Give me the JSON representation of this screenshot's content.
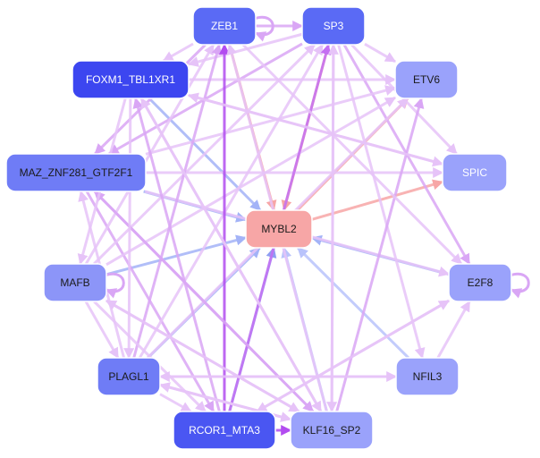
{
  "network": {
    "nodes": [
      {
        "id": "ZEB1",
        "label": "ZEB1",
        "fill": "#5a6af5",
        "text": "#ffffff"
      },
      {
        "id": "SP3",
        "label": "SP3",
        "fill": "#5a6af5",
        "text": "#ffffff"
      },
      {
        "id": "FOXM1_TBL1XR1",
        "label": "FOXM1_TBL1XR1",
        "fill": "#3c46f0",
        "text": "#ffffff"
      },
      {
        "id": "ETV6",
        "label": "ETV6",
        "fill": "#9aa2fb",
        "text": "#1a1a1a"
      },
      {
        "id": "MAZ_ZNF281_GTF2F1",
        "label": "MAZ_ZNF281_GTF2F1",
        "fill": "#6f7cf6",
        "text": "#1a1a1a"
      },
      {
        "id": "SPIC",
        "label": "SPIC",
        "fill": "#9aa2fb",
        "text": "#ffffff"
      },
      {
        "id": "MYBL2",
        "label": "MYBL2",
        "fill": "#f7a6a6",
        "text": "#1a1a1a"
      },
      {
        "id": "MAFB",
        "label": "MAFB",
        "fill": "#8c95f8",
        "text": "#1a1a1a"
      },
      {
        "id": "E2F8",
        "label": "E2F8",
        "fill": "#9aa2fb",
        "text": "#1a1a1a"
      },
      {
        "id": "PLAGL1",
        "label": "PLAGL1",
        "fill": "#6f7cf6",
        "text": "#1a1a1a"
      },
      {
        "id": "NFIL3",
        "label": "NFIL3",
        "fill": "#9aa2fb",
        "text": "#1a1a1a"
      },
      {
        "id": "RCOR1_MTA3",
        "label": "RCOR1_MTA3",
        "fill": "#4a56f2",
        "text": "#ffffff"
      },
      {
        "id": "KLF16_SP2",
        "label": "KLF16_SP2",
        "fill": "#9aa2fb",
        "text": "#1a1a1a"
      }
    ],
    "edges": [
      [
        "SP3",
        "MYBL2",
        "#f7a6a6"
      ],
      [
        "ZEB1",
        "MYBL2",
        "#f7a6a6"
      ],
      [
        "MYBL2",
        "ETV6",
        "#f7a6a6"
      ],
      [
        "MYBL2",
        "SPIC",
        "#f7a6a6"
      ],
      [
        "FOXM1_TBL1XR1",
        "MYBL2",
        "#a3b3f7"
      ],
      [
        "MAZ_ZNF281_GTF2F1",
        "MYBL2",
        "#a3b3f7"
      ],
      [
        "MAFB",
        "MYBL2",
        "#a3b3f7"
      ],
      [
        "E2F8",
        "MYBL2",
        "#a3b3f7"
      ],
      [
        "PLAGL1",
        "MYBL2",
        "#a3b3f7"
      ],
      [
        "RCOR1_MTA3",
        "MYBL2",
        "#8f9ef2"
      ],
      [
        "KLF16_SP2",
        "MYBL2",
        "#b9c3fb"
      ],
      [
        "NFIL3",
        "MYBL2",
        "#b9c3fb"
      ],
      [
        "ZEB1",
        "SP3",
        "#d9a6f5"
      ],
      [
        "SP3",
        "ETV6",
        "#e6c3f8"
      ],
      [
        "SP3",
        "SPIC",
        "#e6c3f8"
      ],
      [
        "SP3",
        "E2F8",
        "#d9a6f5"
      ],
      [
        "SP3",
        "NFIL3",
        "#e6c3f8"
      ],
      [
        "SP3",
        "FOXM1_TBL1XR1",
        "#e6c3f8"
      ],
      [
        "SP3",
        "MAZ_ZNF281_GTF2F1",
        "#d9a6f5"
      ],
      [
        "ZEB1",
        "FOXM1_TBL1XR1",
        "#e6c3f8"
      ],
      [
        "ZEB1",
        "MAZ_ZNF281_GTF2F1",
        "#d9a6f5"
      ],
      [
        "FOXM1_TBL1XR1",
        "ETV6",
        "#e6c3f8"
      ],
      [
        "FOXM1_TBL1XR1",
        "SPIC",
        "#e6c3f8"
      ],
      [
        "MAZ_ZNF281_GTF2F1",
        "SPIC",
        "#e6c3f8"
      ],
      [
        "MAZ_ZNF281_GTF2F1",
        "ETV6",
        "#e6c3f8"
      ],
      [
        "MAZ_ZNF281_GTF2F1",
        "E2F8",
        "#e6c3f8"
      ],
      [
        "MAZ_ZNF281_GTF2F1",
        "KLF16_SP2",
        "#d9a6f5"
      ],
      [
        "MAZ_ZNF281_GTF2F1",
        "RCOR1_MTA3",
        "#d9a6f5"
      ],
      [
        "MAFB",
        "SP3",
        "#e6c3f8"
      ],
      [
        "MAFB",
        "ZEB1",
        "#e6c3f8"
      ],
      [
        "MAFB",
        "ETV6",
        "#e6c3f8"
      ],
      [
        "MAFB",
        "KLF16_SP2",
        "#e6c3f8"
      ],
      [
        "PLAGL1",
        "SP3",
        "#e6c3f8"
      ],
      [
        "PLAGL1",
        "ZEB1",
        "#d9a6f5"
      ],
      [
        "PLAGL1",
        "ETV6",
        "#e6c3f8"
      ],
      [
        "PLAGL1",
        "NFIL3",
        "#e6c3f8"
      ],
      [
        "PLAGL1",
        "MAZ_ZNF281_GTF2F1",
        "#e6c3f8"
      ],
      [
        "RCOR1_MTA3",
        "SP3",
        "#c46ef2"
      ],
      [
        "RCOR1_MTA3",
        "ZEB1",
        "#b24cf0"
      ],
      [
        "RCOR1_MTA3",
        "KLF16_SP2",
        "#b24cf0"
      ],
      [
        "RCOR1_MTA3",
        "E2F8",
        "#e6c3f8"
      ],
      [
        "RCOR1_MTA3",
        "FOXM1_TBL1XR1",
        "#d9a6f5"
      ],
      [
        "KLF16_SP2",
        "SP3",
        "#e6c3f8"
      ],
      [
        "KLF16_SP2",
        "ZEB1",
        "#e6c3f8"
      ],
      [
        "KLF16_SP2",
        "ETV6",
        "#d9a6f5"
      ],
      [
        "KLF16_SP2",
        "FOXM1_TBL1XR1",
        "#e6c3f8"
      ],
      [
        "KLF16_SP2",
        "MAFB",
        "#e6c3f8"
      ],
      [
        "KLF16_SP2",
        "PLAGL1",
        "#e6c3f8"
      ],
      [
        "KLF16_SP2",
        "MAZ_ZNF281_GTF2F1",
        "#d9a6f5"
      ],
      [
        "NFIL3",
        "E2F8",
        "#e6c3f8"
      ],
      [
        "E2F8",
        "RCOR1_MTA3",
        "#e6c3f8"
      ],
      [
        "FOXM1_TBL1XR1",
        "PLAGL1",
        "#e6c3f8"
      ],
      [
        "FOXM1_TBL1XR1",
        "KLF16_SP2",
        "#e6c3f8"
      ],
      [
        "FOXM1_TBL1XR1",
        "MAFB",
        "#e6c3f8"
      ],
      [
        "MAFB",
        "PLAGL1",
        "#e6c3f8"
      ],
      [
        "MAFB",
        "RCOR1_MTA3",
        "#e6c3f8"
      ],
      [
        "PLAGL1",
        "RCOR1_MTA3",
        "#e6c3f8"
      ],
      [
        "PLAGL1",
        "KLF16_SP2",
        "#e6c3f8"
      ],
      [
        "ZEB1",
        "E2F8",
        "#e6c3f8"
      ],
      [
        "SP3",
        "KLF16_SP2",
        "#e6c3f8"
      ],
      [
        "SPIC",
        "FOXM1_TBL1XR1",
        "#e6c3f8"
      ],
      [
        "NFIL3",
        "PLAGL1",
        "#e6c3f8"
      ]
    ],
    "self_loops": [
      [
        "ZEB1",
        "#d9a6f5"
      ],
      [
        "MAFB",
        "#d9a6f5"
      ],
      [
        "E2F8",
        "#d9a6f5"
      ]
    ]
  }
}
